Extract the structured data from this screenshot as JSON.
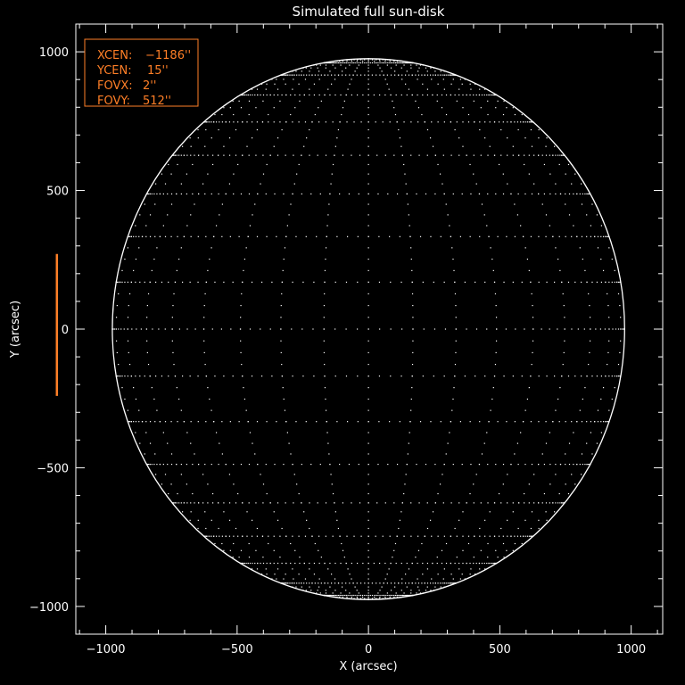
{
  "chart_data": {
    "type": "scatter",
    "title": "Simulated full sun-disk",
    "xlabel": "X (arcsec)",
    "ylabel": "Y (arcsec)",
    "xlim": [
      -1114,
      1120
    ],
    "ylim": [
      -1100,
      1100
    ],
    "xticks": [
      -1000,
      -500,
      0,
      500,
      1000
    ],
    "yticks": [
      -1000,
      -500,
      0,
      500,
      1000
    ],
    "xtick_labels": [
      "−1000",
      "−500",
      "0",
      "500",
      "1000"
    ],
    "ytick_labels": [
      "−1000",
      "−500",
      "0",
      "500",
      "1000"
    ],
    "minor_tick_step": 100,
    "solar_radius_arcsec": 975,
    "grid_spacing_deg": 10,
    "field_of_view": {
      "xcen": -1186,
      "ycen": 15,
      "fovx": 2,
      "fovy": 512,
      "color": "#ff7f27"
    },
    "info_box": {
      "lines": [
        {
          "key": "XCEN:",
          "value": "−1186''"
        },
        {
          "key": "YCEN:",
          "value": "15''"
        },
        {
          "key": "FOVX:",
          "value": "2''"
        },
        {
          "key": "FOVY:",
          "value": "512''"
        }
      ],
      "color": "#ff7f27",
      "placement": "top-left"
    },
    "colors": {
      "background": "#000000",
      "foreground": "#ffffff"
    }
  }
}
